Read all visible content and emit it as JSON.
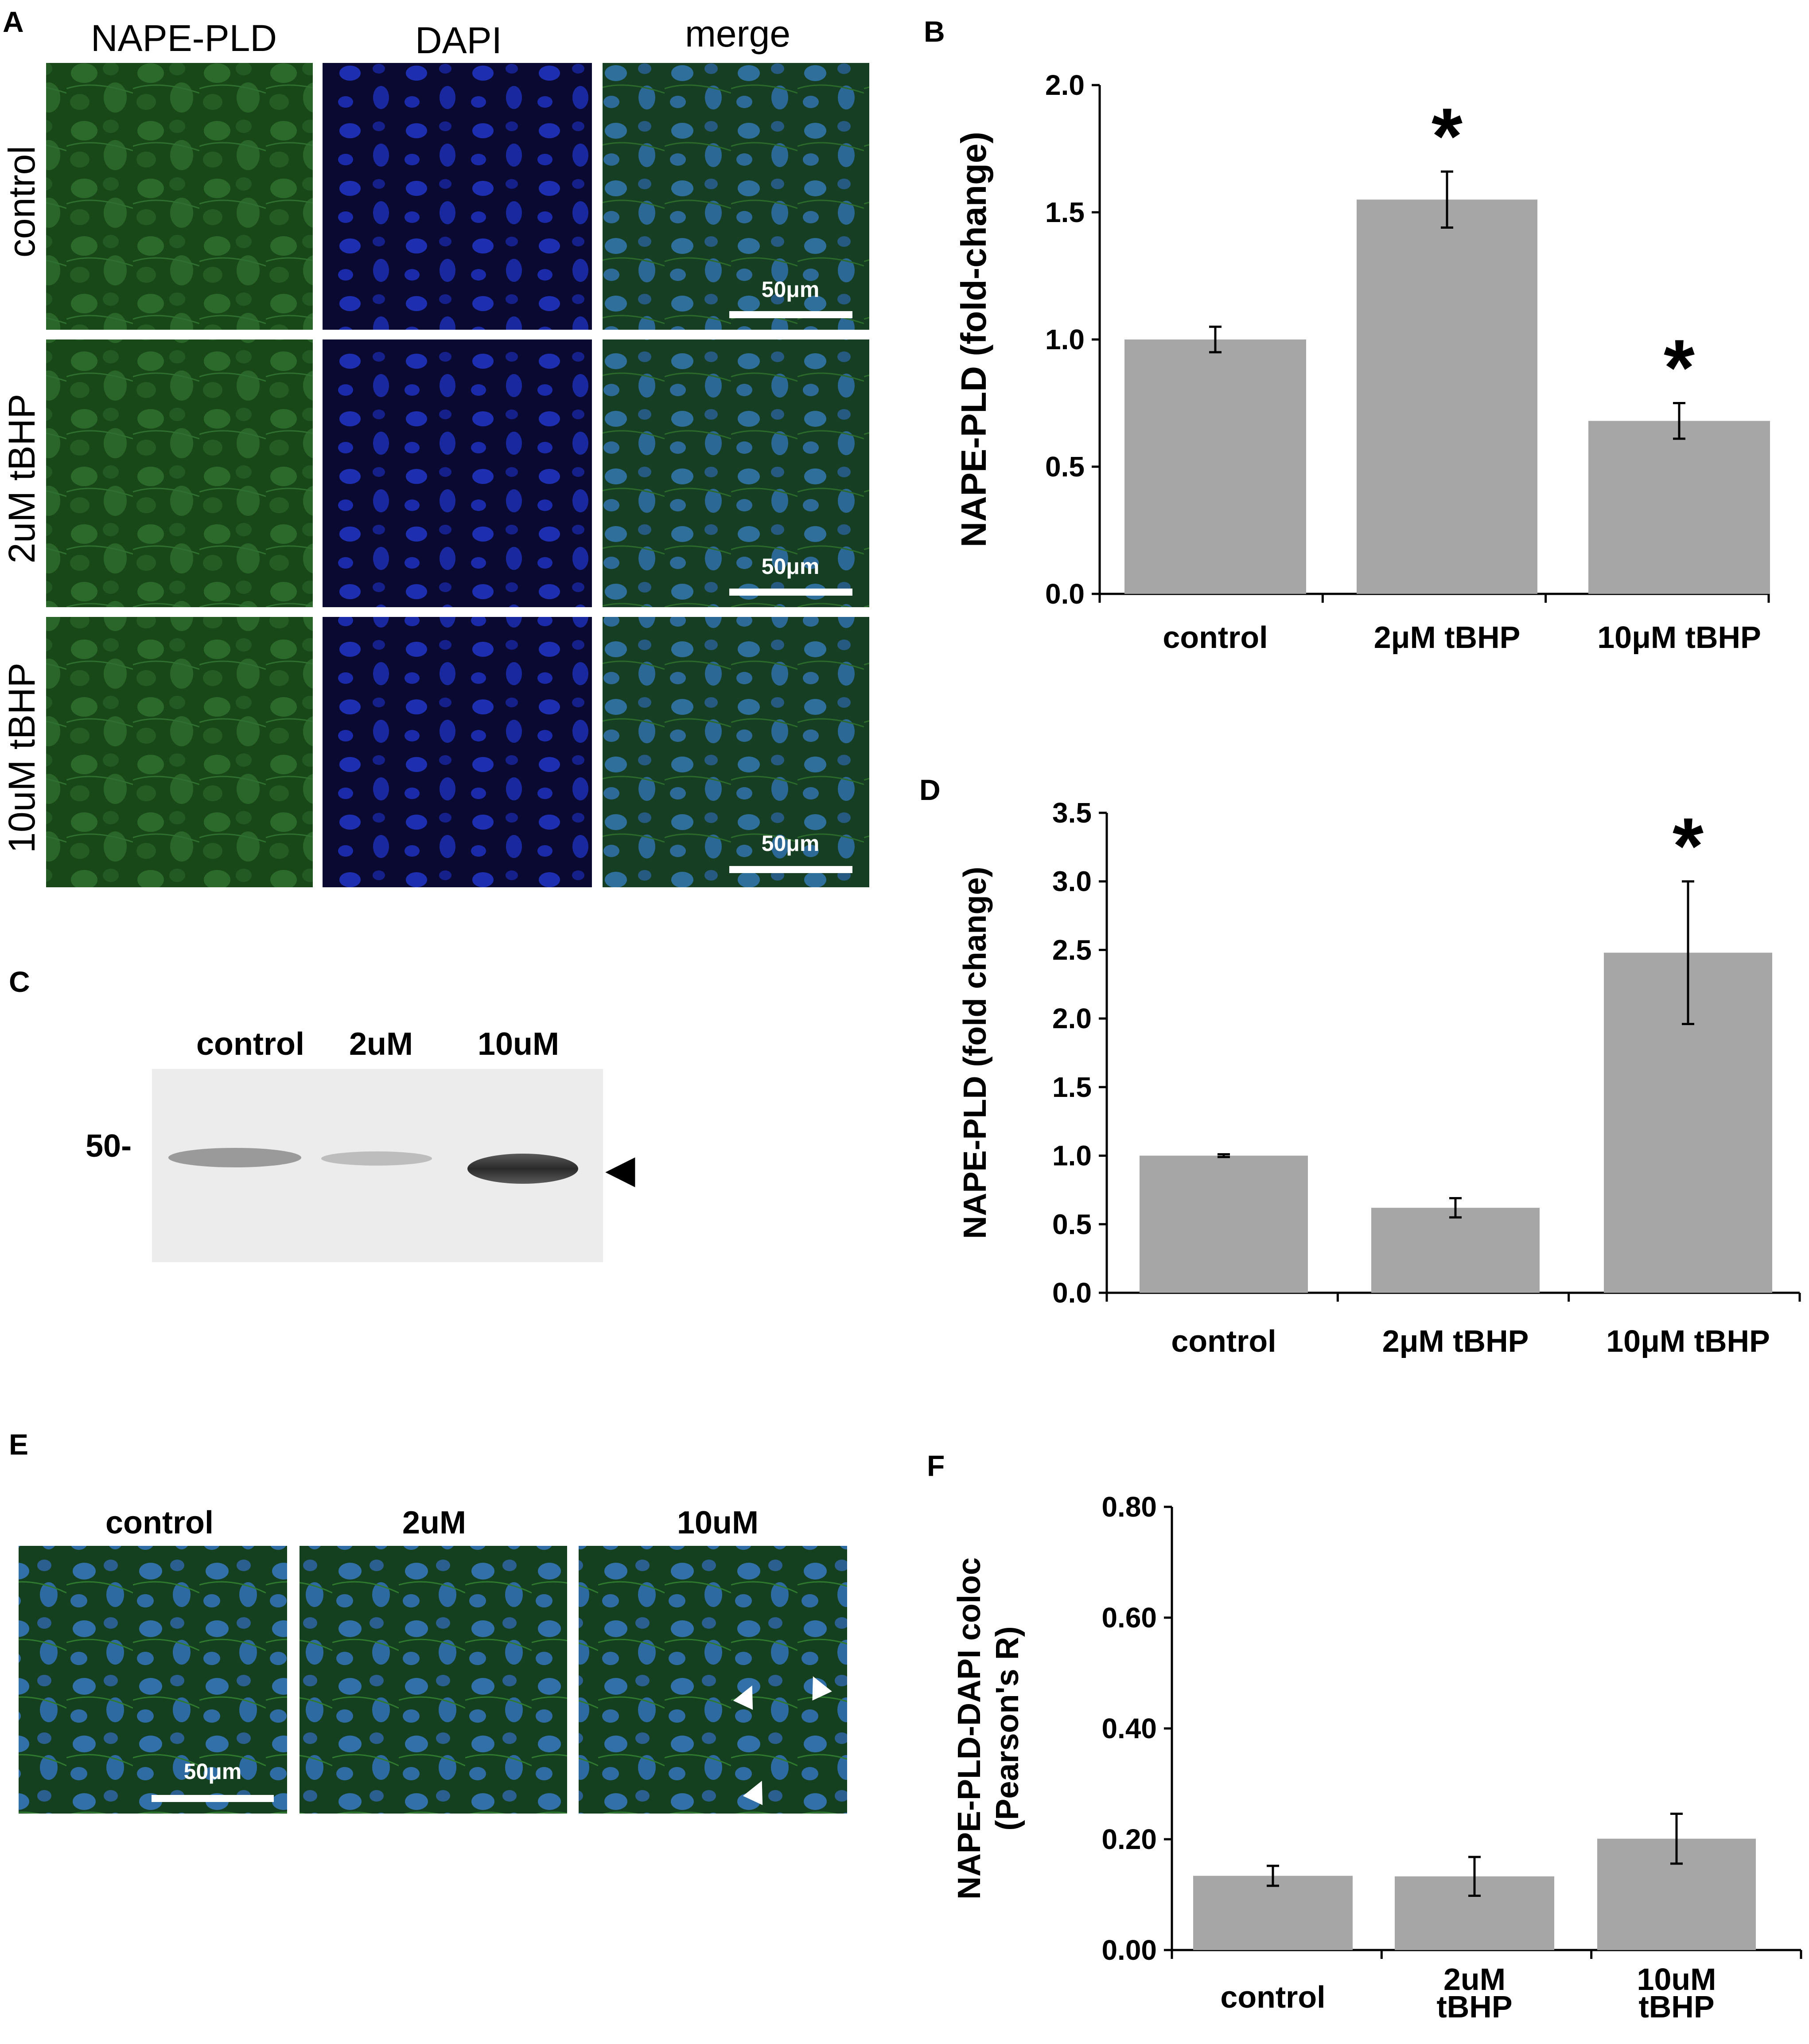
{
  "colors": {
    "bar": "#a6a6a6",
    "axis": "#000000",
    "nape": "#1f5a1f",
    "dapi": "#0d0d5e",
    "merge": "#1e4a5c",
    "blot_bg": "#ececec",
    "blot_band": "#2b2b2b"
  },
  "panel_letters": [
    "A",
    "B",
    "C",
    "D",
    "E",
    "F"
  ],
  "panelA": {
    "columns": [
      "NAPE-PLD",
      "DAPI",
      "merge"
    ],
    "rows": [
      "control",
      "2uM tBHP",
      "10uM tBHP"
    ],
    "scalebar_label": "50μm"
  },
  "panelC": {
    "lanes": [
      "control",
      "2uM",
      "10uM"
    ],
    "marker": "50-",
    "arrow_glyph": "◀"
  },
  "panelE": {
    "columns": [
      "control",
      "2uM",
      "10uM"
    ],
    "scalebar_label": "50μm",
    "arrow_glyph": "▲"
  },
  "chart_data": [
    {
      "panel": "B",
      "type": "bar",
      "categories": [
        "control",
        "2μM tBHP",
        "10μM tBHP"
      ],
      "values": [
        1.0,
        1.55,
        0.68
      ],
      "errors": [
        0.05,
        0.11,
        0.07
      ],
      "significant": [
        false,
        true,
        true
      ],
      "ylabel": "NAPE-PLD (fold-change)",
      "ylim": [
        0,
        2.0
      ],
      "yticks": [
        "0.0",
        "0.5",
        "1.0",
        "1.5",
        "2.0"
      ],
      "ytick_values": [
        0,
        0.5,
        1.0,
        1.5,
        2.0
      ]
    },
    {
      "panel": "D",
      "type": "bar",
      "categories": [
        "control",
        "2μM tBHP",
        "10μM tBHP"
      ],
      "values": [
        1.0,
        0.62,
        2.48
      ],
      "errors": [
        0.01,
        0.07,
        0.52
      ],
      "significant": [
        false,
        false,
        true
      ],
      "ylabel": "NAPE-PLD (fold change)",
      "ylim": [
        0,
        3.5
      ],
      "yticks": [
        "0.0",
        "0.5",
        "1.0",
        "1.5",
        "2.0",
        "2.5",
        "3.0",
        "3.5"
      ],
      "ytick_values": [
        0,
        0.5,
        1.0,
        1.5,
        2.0,
        2.5,
        3.0,
        3.5
      ]
    },
    {
      "panel": "F",
      "type": "bar",
      "categories": [
        [
          "control"
        ],
        [
          "2uM",
          "tBHP"
        ],
        [
          "10uM",
          "tBHP"
        ]
      ],
      "values": [
        0.134,
        0.133,
        0.201
      ],
      "errors": [
        0.018,
        0.035,
        0.045
      ],
      "significant": [
        false,
        false,
        false
      ],
      "ylabel": [
        "NAPE-PLD-DAPI coloc",
        "(Pearson's R)"
      ],
      "ylim": [
        0,
        0.8
      ],
      "yticks": [
        "0.00",
        "0.20",
        "0.40",
        "0.60",
        "0.80"
      ],
      "ytick_values": [
        0,
        0.2,
        0.4,
        0.6,
        0.8
      ]
    }
  ],
  "asterisk": "*"
}
